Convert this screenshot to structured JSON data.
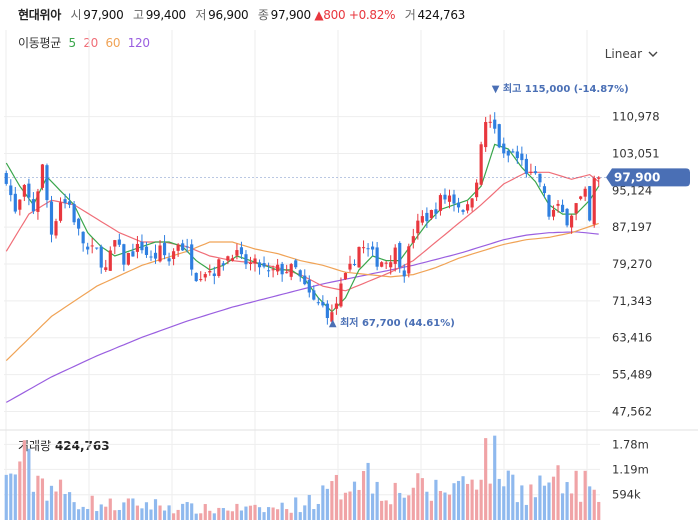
{
  "header": {
    "name": "현대위아",
    "open_label": "시",
    "open": "97,900",
    "high_label": "고",
    "high": "99,400",
    "low_label": "저",
    "low": "96,900",
    "close_label": "종",
    "close": "97,900",
    "change": "▲800",
    "change_pct": "+0.82%",
    "volume_label": "거",
    "volume": "424,763"
  },
  "ma_legend": {
    "title": "이동평균",
    "items": [
      {
        "label": "5",
        "color": "#3aa64c"
      },
      {
        "label": "20",
        "color": "#f06e78"
      },
      {
        "label": "60",
        "color": "#f0a356"
      },
      {
        "label": "120",
        "color": "#9a5fe0"
      }
    ]
  },
  "scale_selector": {
    "value": "Linear"
  },
  "volume_legend": {
    "label": "거래량",
    "value": "424,763"
  },
  "colors": {
    "up": "#e8373e",
    "down": "#2f7fe0",
    "vol_up": "#f0a3a6",
    "vol_down": "#8fb9ee",
    "price_tag": "#4a6fb5"
  },
  "chart_data": {
    "type": "candlestick",
    "price_axis": {
      "ticks": [
        47562,
        55489,
        63416,
        71343,
        79270,
        87197,
        95124,
        103051,
        110978
      ],
      "tick_labels": [
        "47,562",
        "55,489",
        "63,416",
        "71,343",
        "79,270",
        "87,197",
        "95,124",
        "103,051",
        "110,978"
      ],
      "ylim": [
        44000,
        121000
      ]
    },
    "volume_axis": {
      "ticks": [
        594000,
        1190000,
        1780000
      ],
      "tick_labels": [
        "594k",
        "1.19m",
        "1.78m"
      ],
      "ylim": [
        0,
        2070000
      ]
    },
    "current_price": {
      "value": 97900,
      "label": "97,900"
    },
    "annotations": [
      {
        "index": 108,
        "price": 115000,
        "text": "▼ 최고 115,000 (-14.87%)"
      },
      {
        "index": 72,
        "price": 67700,
        "text": "▲ 최저 67,700 (44.61%)"
      }
    ],
    "moving_averages": [
      {
        "name": "5",
        "color": "#3aa64c",
        "anchors": [
          [
            0,
            101000
          ],
          [
            3,
            96000
          ],
          [
            6,
            92000
          ],
          [
            9,
            98000
          ],
          [
            12,
            95000
          ],
          [
            15,
            92000
          ],
          [
            18,
            86000
          ],
          [
            21,
            83000
          ],
          [
            24,
            81000
          ],
          [
            27,
            82000
          ],
          [
            30,
            83000
          ],
          [
            33,
            84000
          ],
          [
            36,
            84000
          ],
          [
            39,
            83000
          ],
          [
            42,
            80000
          ],
          [
            45,
            78000
          ],
          [
            48,
            79000
          ],
          [
            51,
            81000
          ],
          [
            54,
            80000
          ],
          [
            57,
            79000
          ],
          [
            60,
            78000
          ],
          [
            63,
            78000
          ],
          [
            66,
            76000
          ],
          [
            69,
            72000
          ],
          [
            72,
            69000
          ],
          [
            75,
            72000
          ],
          [
            78,
            78000
          ],
          [
            81,
            81000
          ],
          [
            84,
            80000
          ],
          [
            87,
            80000
          ],
          [
            90,
            84000
          ],
          [
            93,
            88000
          ],
          [
            96,
            91000
          ],
          [
            99,
            92000
          ],
          [
            102,
            93000
          ],
          [
            105,
            96000
          ],
          [
            108,
            105000
          ],
          [
            111,
            104000
          ],
          [
            114,
            100000
          ],
          [
            117,
            97000
          ],
          [
            120,
            92000
          ],
          [
            123,
            90000
          ],
          [
            126,
            90000
          ],
          [
            129,
            93000
          ],
          [
            131,
            96000
          ]
        ]
      },
      {
        "name": "20",
        "color": "#f06e78",
        "anchors": [
          [
            0,
            82000
          ],
          [
            5,
            90000
          ],
          [
            10,
            93000
          ],
          [
            15,
            92000
          ],
          [
            20,
            89000
          ],
          [
            25,
            86000
          ],
          [
            30,
            84000
          ],
          [
            35,
            84000
          ],
          [
            40,
            83000
          ],
          [
            45,
            81000
          ],
          [
            50,
            80000
          ],
          [
            55,
            79500
          ],
          [
            60,
            78500
          ],
          [
            65,
            77000
          ],
          [
            70,
            74500
          ],
          [
            75,
            73500
          ],
          [
            80,
            75500
          ],
          [
            85,
            77500
          ],
          [
            90,
            80000
          ],
          [
            95,
            84000
          ],
          [
            100,
            88000
          ],
          [
            105,
            92000
          ],
          [
            110,
            96500
          ],
          [
            115,
            99000
          ],
          [
            120,
            99000
          ],
          [
            125,
            97500
          ],
          [
            129,
            98500
          ],
          [
            131,
            97000
          ]
        ]
      },
      {
        "name": "60",
        "color": "#f0a356",
        "anchors": [
          [
            0,
            58500
          ],
          [
            10,
            68000
          ],
          [
            20,
            74500
          ],
          [
            30,
            79000
          ],
          [
            40,
            82000
          ],
          [
            45,
            84000
          ],
          [
            50,
            84000
          ],
          [
            55,
            82500
          ],
          [
            60,
            81500
          ],
          [
            65,
            80000
          ],
          [
            70,
            79000
          ],
          [
            75,
            77500
          ],
          [
            80,
            77000
          ],
          [
            85,
            76500
          ],
          [
            90,
            77000
          ],
          [
            95,
            78500
          ],
          [
            100,
            80500
          ],
          [
            105,
            82000
          ],
          [
            110,
            83500
          ],
          [
            115,
            84500
          ],
          [
            120,
            85000
          ],
          [
            125,
            86000
          ],
          [
            131,
            88000
          ]
        ]
      },
      {
        "name": "120",
        "color": "#9a5fe0",
        "anchors": [
          [
            0,
            49500
          ],
          [
            10,
            55000
          ],
          [
            20,
            59500
          ],
          [
            30,
            63500
          ],
          [
            40,
            67000
          ],
          [
            50,
            70000
          ],
          [
            60,
            72500
          ],
          [
            70,
            75000
          ],
          [
            80,
            77000
          ],
          [
            90,
            79000
          ],
          [
            100,
            81500
          ],
          [
            105,
            83000
          ],
          [
            110,
            84500
          ],
          [
            115,
            85500
          ],
          [
            120,
            86000
          ],
          [
            126,
            86200
          ],
          [
            131,
            85700
          ]
        ]
      }
    ],
    "close_anchors": [
      [
        0,
        98000
      ],
      [
        2,
        90000
      ],
      [
        4,
        95000
      ],
      [
        6,
        91000
      ],
      [
        8,
        100000
      ],
      [
        10,
        86000
      ],
      [
        12,
        93000
      ],
      [
        14,
        92000
      ],
      [
        16,
        86000
      ],
      [
        18,
        82000
      ],
      [
        20,
        82000
      ],
      [
        22,
        78000
      ],
      [
        24,
        84000
      ],
      [
        26,
        80000
      ],
      [
        28,
        82000
      ],
      [
        30,
        83000
      ],
      [
        32,
        80000
      ],
      [
        34,
        82000
      ],
      [
        36,
        80000
      ],
      [
        38,
        84000
      ],
      [
        40,
        82000
      ],
      [
        42,
        77000
      ],
      [
        44,
        78000
      ],
      [
        46,
        78000
      ],
      [
        48,
        80000
      ],
      [
        50,
        82000
      ],
      [
        52,
        80000
      ],
      [
        54,
        79000
      ],
      [
        56,
        79000
      ],
      [
        58,
        77000
      ],
      [
        60,
        78000
      ],
      [
        62,
        78000
      ],
      [
        64,
        78000
      ],
      [
        66,
        74000
      ],
      [
        68,
        71000
      ],
      [
        70,
        70000
      ],
      [
        72,
        68000
      ],
      [
        74,
        74000
      ],
      [
        76,
        78000
      ],
      [
        78,
        83000
      ],
      [
        80,
        82000
      ],
      [
        82,
        80000
      ],
      [
        84,
        80000
      ],
      [
        86,
        82000
      ],
      [
        88,
        78000
      ],
      [
        90,
        86000
      ],
      [
        92,
        89000
      ],
      [
        94,
        90000
      ],
      [
        96,
        93000
      ],
      [
        98,
        94000
      ],
      [
        100,
        92000
      ],
      [
        102,
        91000
      ],
      [
        104,
        98000
      ],
      [
        106,
        110000
      ],
      [
        108,
        108000
      ],
      [
        110,
        102000
      ],
      [
        112,
        103000
      ],
      [
        114,
        101000
      ],
      [
        116,
        98000
      ],
      [
        118,
        97000
      ],
      [
        120,
        90000
      ],
      [
        122,
        91000
      ],
      [
        124,
        89000
      ],
      [
        126,
        92000
      ],
      [
        128,
        94000
      ],
      [
        129,
        88000
      ],
      [
        130,
        97000
      ],
      [
        131,
        97900
      ]
    ],
    "volume_anchors": [
      [
        0,
        900000
      ],
      [
        3,
        1500000
      ],
      [
        6,
        1100000
      ],
      [
        9,
        900000
      ],
      [
        12,
        700000
      ],
      [
        15,
        500000
      ],
      [
        20,
        400000
      ],
      [
        25,
        350000
      ],
      [
        30,
        400000
      ],
      [
        35,
        350000
      ],
      [
        40,
        300000
      ],
      [
        45,
        250000
      ],
      [
        50,
        300000
      ],
      [
        55,
        250000
      ],
      [
        60,
        300000
      ],
      [
        65,
        400000
      ],
      [
        70,
        600000
      ],
      [
        75,
        900000
      ],
      [
        78,
        1300000
      ],
      [
        82,
        900000
      ],
      [
        86,
        700000
      ],
      [
        90,
        800000
      ],
      [
        94,
        700000
      ],
      [
        98,
        800000
      ],
      [
        102,
        1000000
      ],
      [
        106,
        1600000
      ],
      [
        108,
        1400000
      ],
      [
        112,
        900000
      ],
      [
        116,
        700000
      ],
      [
        120,
        1000000
      ],
      [
        124,
        800000
      ],
      [
        128,
        900000
      ],
      [
        131,
        424763
      ]
    ],
    "n_candles": 132
  }
}
